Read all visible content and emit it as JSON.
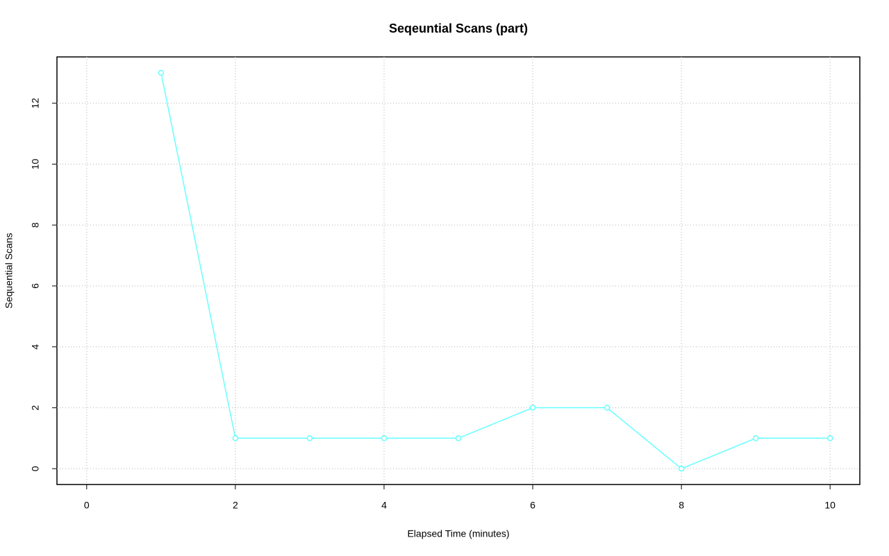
{
  "chart_data": {
    "type": "line",
    "title": "Seqeuntial Scans (part)",
    "x_label": "Elapsed Time (minutes)",
    "y_label": "Sequential Scans",
    "x": [
      1,
      2,
      3,
      4,
      5,
      6,
      7,
      8,
      9,
      10
    ],
    "values": [
      13,
      1,
      1,
      1,
      1,
      2,
      2,
      0,
      1,
      1
    ],
    "color": "#66ffff",
    "xlim": [
      -0.4,
      10.4
    ],
    "ylim": [
      -0.52,
      13.52
    ],
    "xticks": [
      0,
      2,
      4,
      6,
      8,
      10
    ],
    "yticks": [
      0,
      2,
      4,
      6,
      8,
      10,
      12
    ],
    "grid": true
  }
}
